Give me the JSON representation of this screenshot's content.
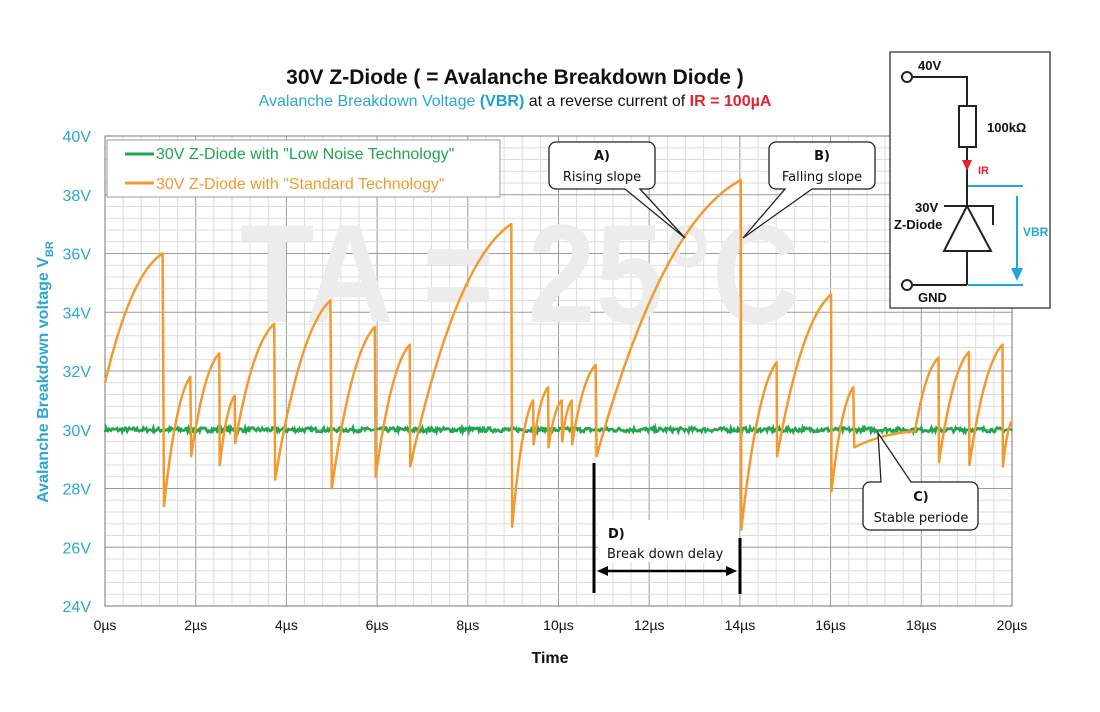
{
  "colors": {
    "axis_text": "#2aa7d4",
    "low_noise": "#1fa64f",
    "standard": "#f39a2e",
    "red": "#e3222c",
    "grid_major": "#9a9a9a",
    "grid_minor": "#dcdcdc"
  },
  "title": "30V Z-Diode ( = Avalanche Breakdown Diode )",
  "subtitle": {
    "part1": "Avalanche Breakdown Voltage ",
    "part2": "(VBR)",
    "part3": " at a reverse current of ",
    "part4": "IR = 100µA"
  },
  "watermark": "TA = 25°C",
  "inset": {
    "supply": "40V",
    "resistor": "100kΩ",
    "current": "IR",
    "diode_line1": "30V",
    "diode_line2": "Z-Diode",
    "voltage": "VBR",
    "ground": "GND"
  },
  "annotations": {
    "a_label": "A)",
    "a_text": "Rising slope",
    "b_label": "B)",
    "b_text": "Falling slope",
    "c_label": "C)",
    "c_text": "Stable periode",
    "d_label": "D)",
    "d_text": "Break down delay"
  },
  "chart_data": {
    "type": "line",
    "title": "30V Z-Diode ( = Avalanche Breakdown Diode )",
    "xlabel": "Time",
    "ylabel": "Avalanche Breakdown voltage  V",
    "ylabel_sub": "BR",
    "xlim": [
      0,
      20
    ],
    "ylim": [
      24,
      40
    ],
    "x_ticks": [
      "0µs",
      "2µs",
      "4µs",
      "6µs",
      "8µs",
      "10µs",
      "12µs",
      "14µs",
      "16µs",
      "18µs",
      "20µs"
    ],
    "y_ticks": [
      "24V",
      "26V",
      "28V",
      "30V",
      "32V",
      "34V",
      "36V",
      "38V",
      "40V"
    ],
    "grid": true,
    "legend_position": "top-left",
    "series": [
      {
        "name": "30V Z-Diode with \"Low Noise Technology\"",
        "nominal": 30.0,
        "noise": 0.08,
        "x": [
          0,
          20
        ],
        "y": [
          30.0,
          30.0
        ]
      },
      {
        "name": "30V Z-Diode with \"Standard Technology\"",
        "x": [
          0,
          1.27,
          1.3,
          1.88,
          1.9,
          2.52,
          2.53,
          2.86,
          2.87,
          3.73,
          3.75,
          4.97,
          5.0,
          5.95,
          5.97,
          6.72,
          6.73,
          8.96,
          8.98,
          9.44,
          9.45,
          9.77,
          9.78,
          10.07,
          10.08,
          10.29,
          10.3,
          10.82,
          10.84,
          14.02,
          14.03,
          14.81,
          14.82,
          16.01,
          16.02,
          16.5,
          16.52,
          17.86,
          18.38,
          18.39,
          19.05,
          19.06,
          19.79,
          19.8,
          20
        ],
        "y": [
          31.6,
          36.0,
          27.4,
          31.8,
          29.1,
          32.6,
          28.8,
          31.15,
          29.55,
          33.6,
          28.3,
          34.4,
          28.0,
          33.5,
          28.4,
          32.9,
          28.75,
          37.0,
          26.7,
          31.0,
          29.5,
          31.45,
          29.4,
          31.0,
          29.6,
          31.0,
          29.5,
          32.2,
          29.1,
          38.5,
          26.6,
          32.3,
          29.1,
          34.6,
          27.9,
          31.45,
          29.4,
          29.95,
          32.45,
          28.9,
          32.65,
          28.8,
          32.9,
          28.75,
          30.3
        ]
      }
    ]
  }
}
